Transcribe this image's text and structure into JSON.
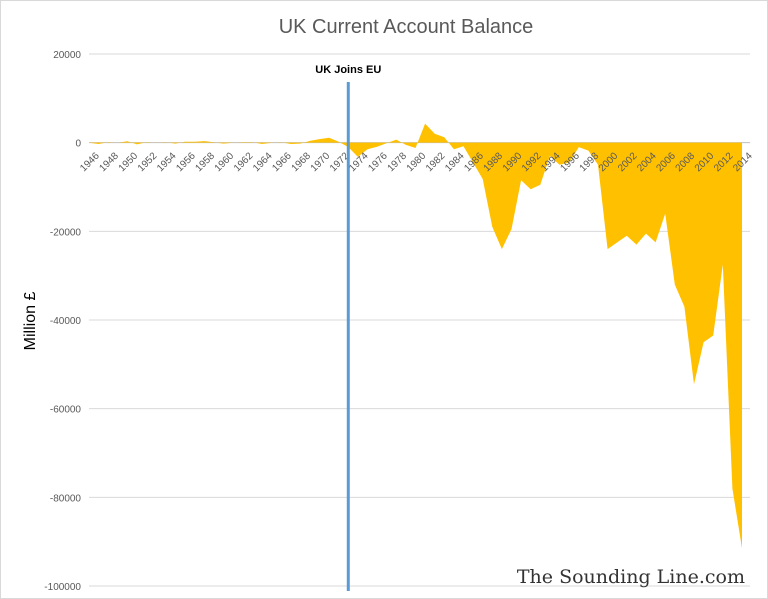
{
  "chart_data": {
    "type": "area",
    "title": "UK Current Account Balance",
    "xlabel": "",
    "ylabel": "Million £",
    "ylim": [
      -100000,
      20000
    ],
    "yticks": [
      20000,
      0,
      -20000,
      -40000,
      -60000,
      -80000,
      -100000
    ],
    "grid": true,
    "legend": "none",
    "color": "#FFC000",
    "x": [
      1946,
      1947,
      1948,
      1949,
      1950,
      1951,
      1952,
      1953,
      1954,
      1955,
      1956,
      1957,
      1958,
      1959,
      1960,
      1961,
      1962,
      1963,
      1964,
      1965,
      1966,
      1967,
      1968,
      1969,
      1970,
      1971,
      1972,
      1973,
      1974,
      1975,
      1976,
      1977,
      1978,
      1979,
      1980,
      1981,
      1982,
      1983,
      1984,
      1985,
      1986,
      1987,
      1988,
      1989,
      1990,
      1991,
      1992,
      1993,
      1994,
      1995,
      1996,
      1997,
      1998,
      1999,
      2000,
      2001,
      2002,
      2003,
      2004,
      2005,
      2006,
      2007,
      2008,
      2009,
      2010,
      2011,
      2012,
      2013,
      2014
    ],
    "values": [
      0,
      -300,
      100,
      0,
      300,
      -400,
      100,
      0,
      100,
      -200,
      200,
      200,
      350,
      100,
      -200,
      0,
      100,
      100,
      -300,
      -50,
      100,
      -300,
      -200,
      400,
      800,
      1100,
      200,
      -1000,
      -3200,
      -1500,
      -900,
      -100,
      700,
      -500,
      -1200,
      4300,
      2000,
      1200,
      -1500,
      -800,
      -4500,
      -8200,
      -19000,
      -24000,
      -19500,
      -8500,
      -10500,
      -9500,
      -3000,
      -5000,
      -4500,
      -1000,
      -1800,
      -5000,
      -24000,
      -22500,
      -21000,
      -23000,
      -20500,
      -22500,
      -16000,
      -32000,
      -37000,
      -54500,
      -45000,
      -43500,
      -27500,
      -78000,
      -91500
    ],
    "xtick_labels": [
      "1946",
      "1948",
      "1950",
      "1952",
      "1954",
      "1956",
      "1958",
      "1960",
      "1962",
      "1964",
      "1966",
      "1968",
      "1970",
      "1972",
      "1974",
      "1976",
      "1978",
      "1980",
      "1982",
      "1984",
      "1986",
      "1988",
      "1990",
      "1992",
      "1994",
      "1996",
      "1998",
      "2000",
      "2002",
      "2004",
      "2006",
      "2008",
      "2010",
      "2012",
      "2014"
    ],
    "annotation": {
      "label": "UK Joins EU",
      "x": 1973,
      "color": "#5B9BD5"
    }
  },
  "watermark": "The Sounding Line.com"
}
